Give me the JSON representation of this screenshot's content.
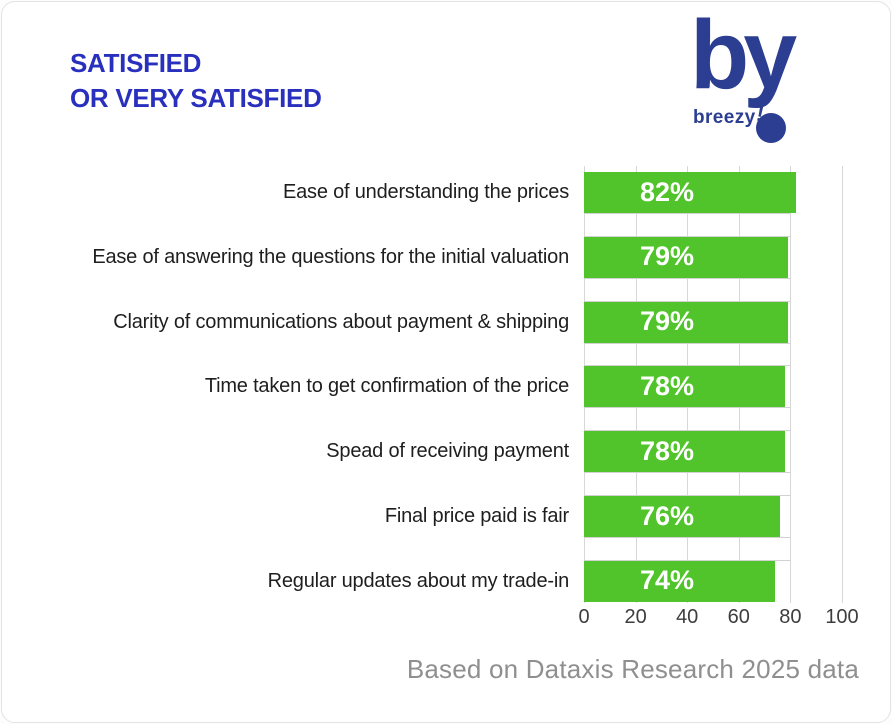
{
  "title": {
    "line1": "SATISFIED",
    "line2": "OR VERY SATISFIED"
  },
  "logo": {
    "big_text": "by",
    "wordmark": "breezy",
    "bang": "!"
  },
  "footer": "Based on Dataxis Research 2025 data",
  "colors": {
    "bar_green": "#50c42a",
    "title_blue": "#2a30be",
    "logo_navy": "#2b3e91",
    "gridline_gray": "#d7d7d7",
    "axis_text": "#3d3d3d",
    "footer_gray": "#8f8f8f"
  },
  "chart_data": {
    "type": "bar",
    "orientation": "horizontal",
    "title": "SATISFIED OR VERY SATISFIED",
    "categories": [
      "Ease of understanding the prices",
      "Ease of answering the questions for the initial valuation",
      "Clarity of communications about payment & shipping",
      "Time taken to get confirmation of the price",
      "Spead of receiving payment",
      "Final price paid is fair",
      "Regular updates about my trade-in"
    ],
    "values": [
      82,
      79,
      79,
      78,
      78,
      76,
      74
    ],
    "value_labels": [
      "82%",
      "79%",
      "79%",
      "78%",
      "78%",
      "76%",
      "74%"
    ],
    "xlabel": "",
    "ylabel": "",
    "xlim": [
      0,
      100
    ],
    "x_ticks": [
      0,
      20,
      40,
      60,
      80,
      100
    ],
    "x_tick_labels": [
      "0",
      "20",
      "40",
      "60",
      "80",
      "100"
    ],
    "grid": true,
    "legend": false,
    "bar_color": "#50c42a",
    "value_label_color": "#ffffff",
    "source_note": "Based on Dataxis Research 2025 data"
  }
}
